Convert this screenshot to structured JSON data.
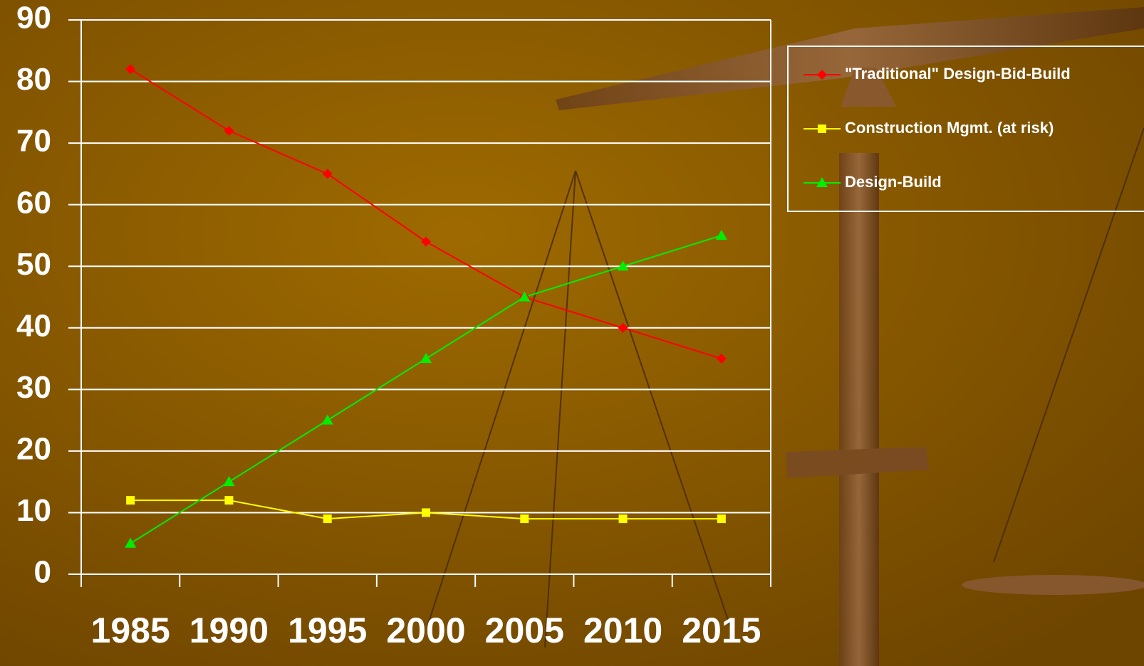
{
  "chart_data": {
    "type": "line",
    "categories": [
      "1985",
      "1990",
      "1995",
      "2000",
      "2005",
      "2010",
      "2015"
    ],
    "series": [
      {
        "name": "\"Traditional\" Design-Bid-Build",
        "color": "#ff0000",
        "marker": "diamond",
        "values": [
          82,
          72,
          65,
          54,
          45,
          40,
          35
        ]
      },
      {
        "name": "Construction Mgmt. (at risk)",
        "color": "#ffff00",
        "marker": "square",
        "values": [
          12,
          12,
          9,
          10,
          9,
          9,
          9
        ]
      },
      {
        "name": "Design-Build",
        "color": "#00ee00",
        "marker": "triangle",
        "values": [
          5,
          15,
          25,
          35,
          45,
          50,
          55
        ]
      }
    ],
    "ylim": [
      0,
      90
    ],
    "yticks": [
      0,
      10,
      20,
      30,
      40,
      50,
      60,
      70,
      80,
      90
    ],
    "grid": true,
    "legend": "top-right"
  }
}
